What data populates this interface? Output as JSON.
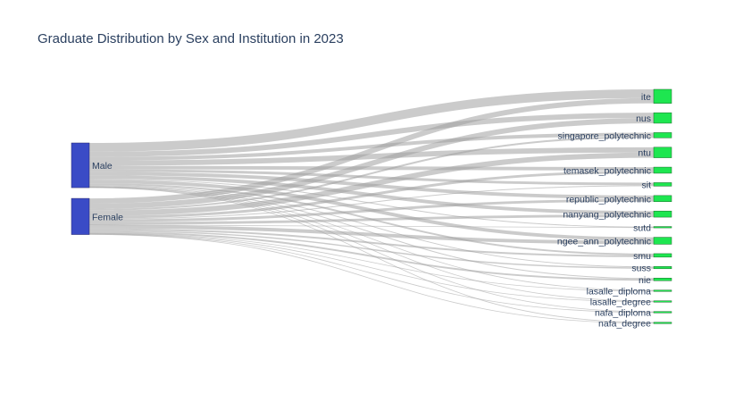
{
  "chart_data": {
    "type": "sankey",
    "title": "Graduate Distribution by Sex and Institution in 2023",
    "source_nodes": [
      "Male",
      "Female"
    ],
    "target_nodes": [
      "ite",
      "nus",
      "singapore_polytechnic",
      "ntu",
      "temasek_polytechnic",
      "sit",
      "republic_polytechnic",
      "nanyang_polytechnic",
      "sutd",
      "ngee_ann_polytechnic",
      "smu",
      "suss",
      "nie",
      "lasalle_diploma",
      "lasalle_degree",
      "nafa_diploma",
      "nafa_degree"
    ],
    "links": [
      {
        "source": "Male",
        "target": "ite",
        "value": 10
      },
      {
        "source": "Male",
        "target": "nus",
        "value": 6
      },
      {
        "source": "Male",
        "target": "singapore_polytechnic",
        "value": 4
      },
      {
        "source": "Male",
        "target": "ntu",
        "value": 6
      },
      {
        "source": "Male",
        "target": "temasek_polytechnic",
        "value": 4
      },
      {
        "source": "Male",
        "target": "sit",
        "value": 3
      },
      {
        "source": "Male",
        "target": "republic_polytechnic",
        "value": 4
      },
      {
        "source": "Male",
        "target": "nanyang_polytechnic",
        "value": 4
      },
      {
        "source": "Male",
        "target": "sutd",
        "value": 1
      },
      {
        "source": "Male",
        "target": "ngee_ann_polytechnic",
        "value": 4
      },
      {
        "source": "Male",
        "target": "smu",
        "value": 2
      },
      {
        "source": "Male",
        "target": "suss",
        "value": 1
      },
      {
        "source": "Male",
        "target": "nie",
        "value": 1
      },
      {
        "source": "Male",
        "target": "lasalle_diploma",
        "value": 0.3
      },
      {
        "source": "Male",
        "target": "lasalle_degree",
        "value": 0.3
      },
      {
        "source": "Male",
        "target": "nafa_diploma",
        "value": 0.3
      },
      {
        "source": "Male",
        "target": "nafa_degree",
        "value": 0.2
      },
      {
        "source": "Female",
        "target": "ite",
        "value": 6
      },
      {
        "source": "Female",
        "target": "nus",
        "value": 6
      },
      {
        "source": "Female",
        "target": "singapore_polytechnic",
        "value": 2
      },
      {
        "source": "Female",
        "target": "ntu",
        "value": 6
      },
      {
        "source": "Female",
        "target": "temasek_polytechnic",
        "value": 3
      },
      {
        "source": "Female",
        "target": "sit",
        "value": 1
      },
      {
        "source": "Female",
        "target": "republic_polytechnic",
        "value": 3
      },
      {
        "source": "Female",
        "target": "nanyang_polytechnic",
        "value": 3
      },
      {
        "source": "Female",
        "target": "sutd",
        "value": 0.3
      },
      {
        "source": "Female",
        "target": "ngee_ann_polytechnic",
        "value": 4
      },
      {
        "source": "Female",
        "target": "smu",
        "value": 2
      },
      {
        "source": "Female",
        "target": "suss",
        "value": 1.5
      },
      {
        "source": "Female",
        "target": "nie",
        "value": 2
      },
      {
        "source": "Female",
        "target": "lasalle_diploma",
        "value": 0.4
      },
      {
        "source": "Female",
        "target": "lasalle_degree",
        "value": 0.4
      },
      {
        "source": "Female",
        "target": "nafa_diploma",
        "value": 0.4
      },
      {
        "source": "Female",
        "target": "nafa_degree",
        "value": 0.3
      }
    ],
    "colors": {
      "source_node": "#3a4bc6",
      "target_node": "#1ee650",
      "link": "#a0a0a0",
      "title": "#2a3f5f"
    }
  }
}
